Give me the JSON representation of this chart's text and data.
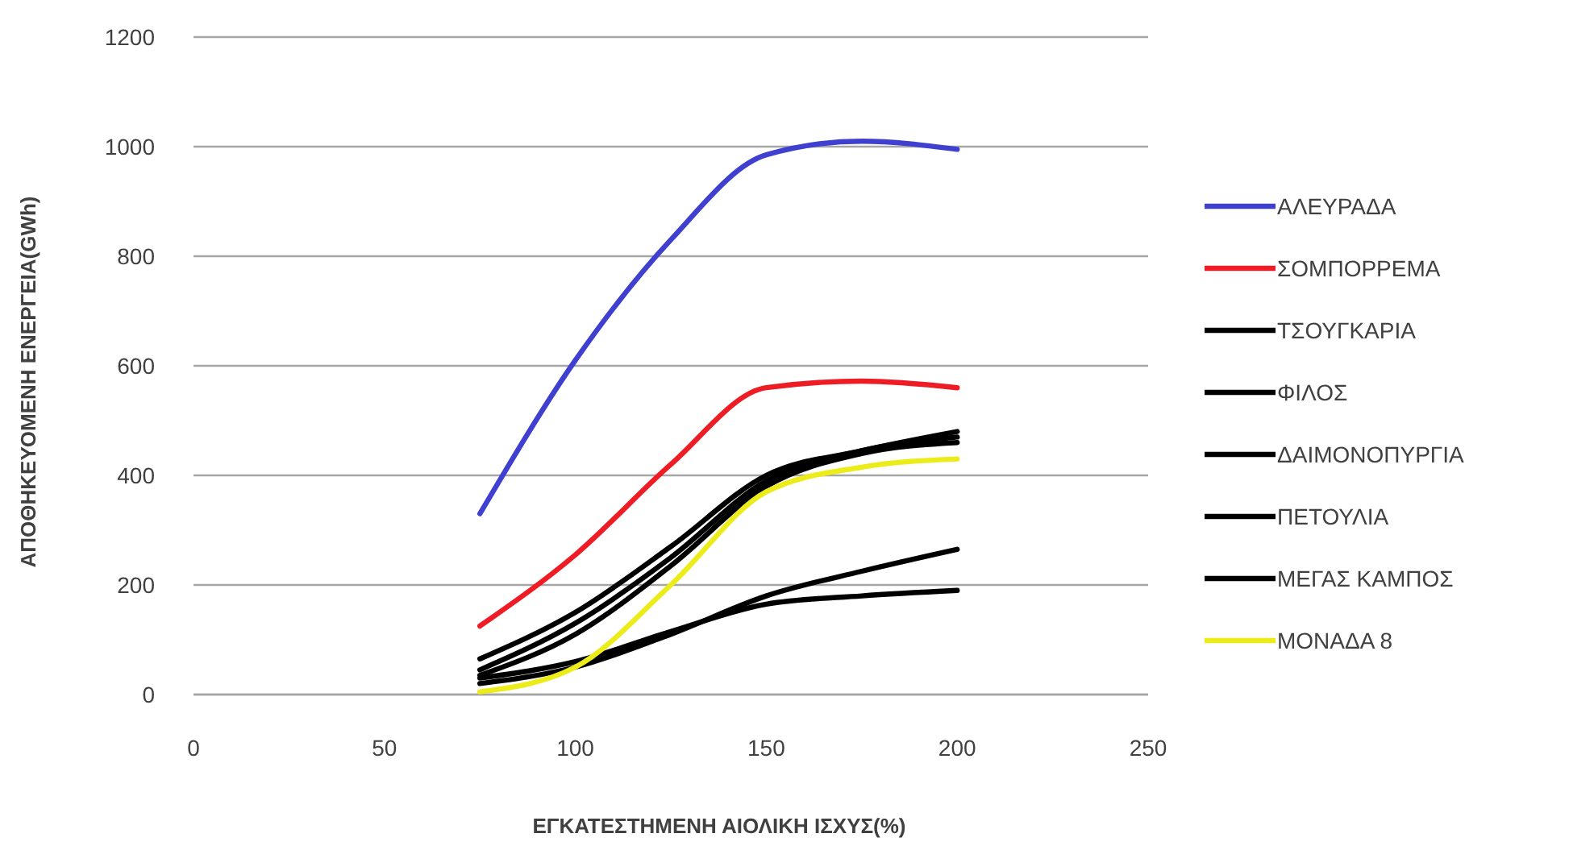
{
  "chart_data": {
    "type": "line",
    "xlabel": "ΕΓΚΑΤΕΣΤΗΜΕΝΗ ΑΙΟΛΙΚΗ ΙΣΧΥΣ(%)",
    "ylabel": "ΑΠΟΘΗΚΕΥΟΜΕΝΗ ΕΝΕΡΓΕΙΑ(GWh)",
    "x": [
      75,
      100,
      125,
      150,
      175,
      200
    ],
    "series": [
      {
        "name": "ΑΛΕΥΡΑΔΑ",
        "color": "#3f3fd0",
        "values": [
          330,
          610,
          830,
          985,
          1010,
          995
        ]
      },
      {
        "name": "ΣΟΜΠΟΡΡΕΜΑ",
        "color": "#ee1c24",
        "values": [
          125,
          255,
          420,
          560,
          572,
          560
        ]
      },
      {
        "name": "ΤΣΟΥΓΚΑΡΙΑ",
        "color": "#000000",
        "values": [
          65,
          150,
          270,
          400,
          445,
          480
        ]
      },
      {
        "name": "ΦΙΛΟΣ",
        "color": "#000000",
        "values": [
          45,
          130,
          250,
          390,
          445,
          470
        ]
      },
      {
        "name": "ΔΑΙΜΟΝΟΠΥΡΓΙΑ",
        "color": "#000000",
        "values": [
          35,
          110,
          235,
          380,
          440,
          460
        ]
      },
      {
        "name": "ΠΕΤΟΥΛΙΑ",
        "color": "#000000",
        "values": [
          20,
          50,
          110,
          180,
          225,
          265
        ]
      },
      {
        "name": "ΜΕΓΑΣ ΚΑΜΠΟΣ",
        "color": "#000000",
        "values": [
          30,
          60,
          115,
          165,
          180,
          190
        ]
      },
      {
        "name": "ΜΟΝΑΔΑ 8",
        "color": "#ecec1a",
        "values": [
          5,
          50,
          200,
          370,
          415,
          430
        ]
      }
    ],
    "xlim": [
      0,
      250
    ],
    "xticks": [
      0,
      50,
      100,
      150,
      200,
      250
    ],
    "ylim": [
      0,
      1200
    ],
    "yticks": [
      0,
      200,
      400,
      600,
      800,
      1000,
      1200
    ],
    "grid": "y",
    "legend": "right",
    "marker": "none",
    "line_style": "solid"
  }
}
